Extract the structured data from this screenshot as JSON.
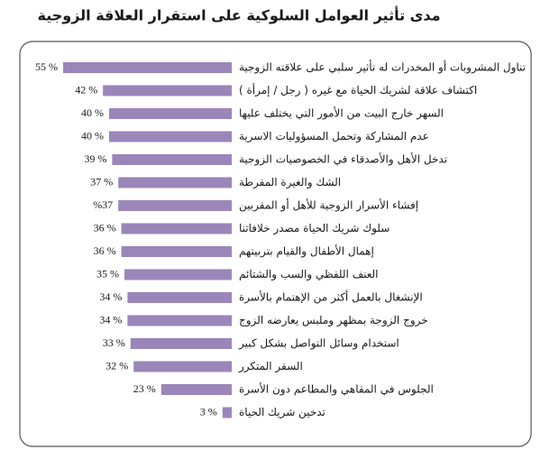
{
  "chart_data": {
    "type": "bar",
    "orientation": "horizontal",
    "title": "مدى تأثير العوامل السلوكية على استقرار العلاقة الزوجية",
    "categories": [
      "تناول المشروبات أو المخدرات له تأثير سلبي على علاقته الزوجية",
      "اكتشاف علاقة لشريك الحياة مع غيره ( رجل / إمرأة )",
      "السهر خارج البيت من الأمور التي يختلف عليها",
      "عدم المشاركة وتحمل المسؤوليات الاسرية",
      "تدخل الأهل والأصدقاء في الخصوصيات الزوجية",
      "الشك والغيرة المفرطة",
      "إفشاء الأسرار الزوجية للأهل أو المقربين",
      "سلوك شريك الحياة مصدر خلافاتنا",
      "إهمال الأطفال والقيام بتربيتهم",
      "العنف اللفظي والسب والشتائم",
      "الإنشغال بالعمل أكثر من الإهتمام بالأسرة",
      "خروج الزوجة بمظهر وملبس يعارضه الزوج",
      "استخدام وسائل التواصل بشكل كبير",
      "السفر المتكرر",
      "الجلوس في المقاهي والمطاعم دون الأسرة",
      "تدخين شريك الحياة"
    ],
    "values": [
      55,
      42,
      40,
      40,
      39,
      37,
      37,
      36,
      36,
      35,
      34,
      34,
      33,
      32,
      23,
      3
    ],
    "value_labels": [
      "55 %",
      "42 %",
      "40 %",
      "40 %",
      "39 %",
      "37 %",
      "%37",
      "36 %",
      "36 %",
      "35 %",
      "34 %",
      "34 %",
      "33 %",
      "32 %",
      "23 %",
      "3 %"
    ],
    "color": "#9a86b9"
  }
}
